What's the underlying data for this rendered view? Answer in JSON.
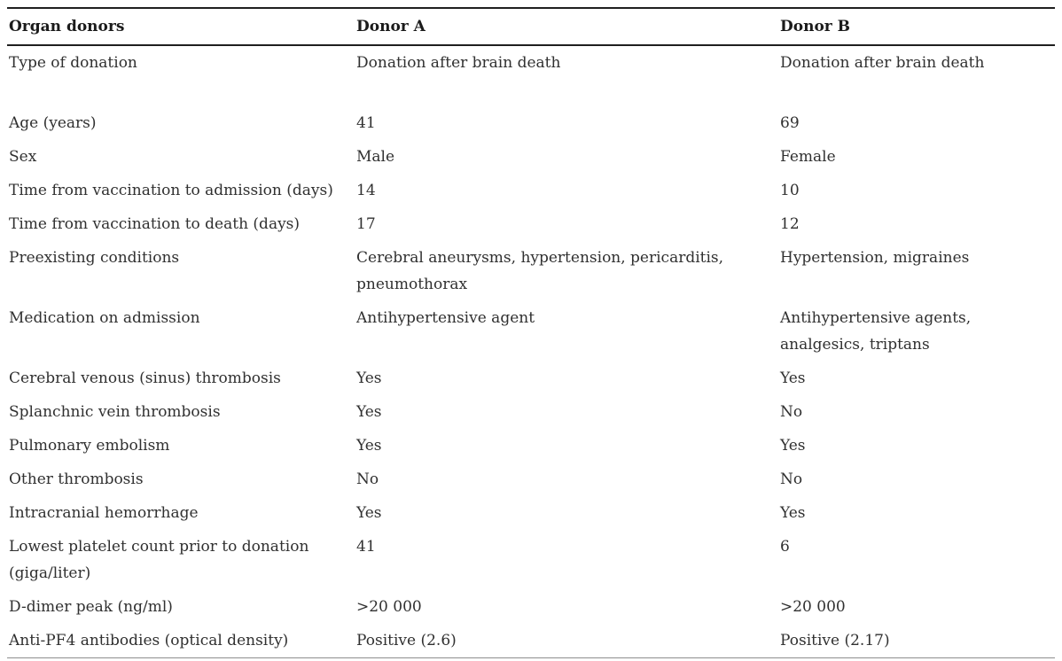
{
  "table": {
    "header": {
      "col1": "Organ donors",
      "col2": "Donor A",
      "col3": "Donor B"
    },
    "rows": [
      {
        "label": "Type of donation",
        "donor_a": "Donation after brain death",
        "donor_b": "Donation after brain death",
        "tall": true
      },
      {
        "label": "Age (years)",
        "donor_a": "41",
        "donor_b": "69"
      },
      {
        "label": "Sex",
        "donor_a": "Male",
        "donor_b": "Female"
      },
      {
        "label": "Time from vaccination to admission (days)",
        "donor_a": "14",
        "donor_b": "10"
      },
      {
        "label": "Time from vaccination to death (days)",
        "donor_a": "17",
        "donor_b": "12"
      },
      {
        "label": "Preexisting conditions",
        "donor_a": "Cerebral aneurysms, hypertension, pericarditis, pneumothorax",
        "donor_b": "Hypertension, migraines"
      },
      {
        "label": "Medication on admission",
        "donor_a": "Antihypertensive agent",
        "donor_b": "Antihypertensive agents, analgesics, triptans"
      },
      {
        "label": "Cerebral venous (sinus) thrombosis",
        "donor_a": "Yes",
        "donor_b": "Yes"
      },
      {
        "label": "Splanchnic vein thrombosis",
        "donor_a": "Yes",
        "donor_b": "No"
      },
      {
        "label": "Pulmonary embolism",
        "donor_a": "Yes",
        "donor_b": "Yes"
      },
      {
        "label": "Other thrombosis",
        "donor_a": "No",
        "donor_b": "No"
      },
      {
        "label": "Intracranial hemorrhage",
        "donor_a": "Yes",
        "donor_b": "Yes"
      },
      {
        "label": "Lowest platelet count prior to donation (giga/liter)",
        "donor_a": "41",
        "donor_b": "6"
      },
      {
        "label": "D-dimer peak (ng/ml)",
        "donor_a": ">20 000",
        "donor_b": ">20 000"
      },
      {
        "label": "Anti-PF4 antibodies (optical density)",
        "donor_a": "Positive (2.6)",
        "donor_b": "Positive (2.17)"
      }
    ],
    "colors": {
      "body_text": "#303030",
      "header_text": "#1b1b1b",
      "rule_dark": "#1f1f1f",
      "rule_light": "#8e8e8e",
      "background": "#ffffff"
    }
  }
}
